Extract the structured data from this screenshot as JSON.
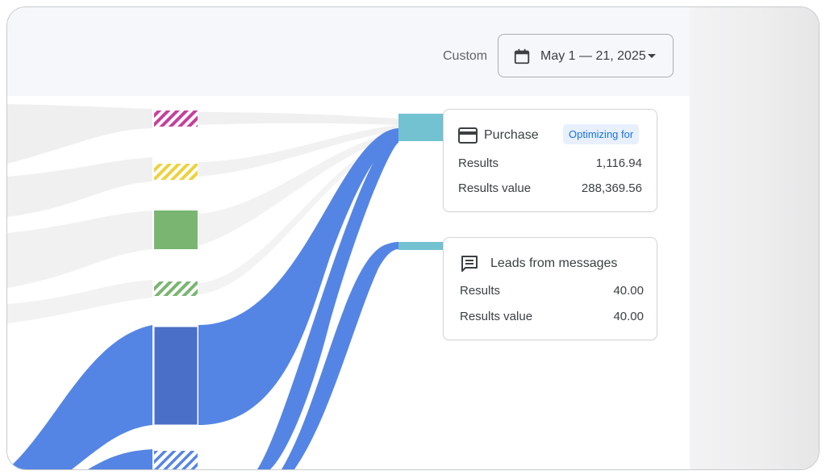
{
  "header": {
    "range_label": "Custom",
    "date_range": "May 1 — 21, 2025"
  },
  "icons": {
    "calendar": "calendar-icon",
    "dropdown": "caret-down-icon",
    "purchase": "credit-card-icon",
    "leads": "message-icon"
  },
  "colors": {
    "flow_blue": "#5585e4",
    "node_blue_dark": "#4a6fc8",
    "target_teal": "#72c2d2",
    "node_magenta": "#c63f9c",
    "node_yellow": "#ecd23c",
    "node_green": "#7ab572",
    "badge_bg": "#e8f0fe",
    "badge_text": "#1a73e8"
  },
  "cards": {
    "purchase": {
      "title": "Purchase",
      "badge": "Optimizing for",
      "rows": [
        {
          "label": "Results",
          "value": "1,116.94"
        },
        {
          "label": "Results value",
          "value": "288,369.56"
        }
      ]
    },
    "leads": {
      "title": "Leads from messages",
      "rows": [
        {
          "label": "Results",
          "value": "40.00"
        },
        {
          "label": "Results value",
          "value": "40.00"
        }
      ]
    }
  }
}
